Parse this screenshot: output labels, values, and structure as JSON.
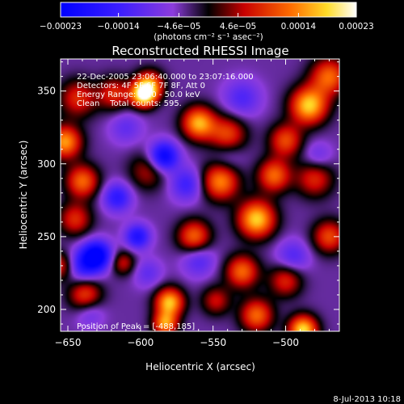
{
  "chart_data": {
    "type": "heatmap",
    "title": "Reconstructed RHESSI Image",
    "xlabel": "Heliocentric X (arcsec)",
    "ylabel": "Heliocentric Y (arcsec)",
    "xlim": [
      -655,
      -463
    ],
    "ylim": [
      185,
      372
    ],
    "x_ticks": [
      -650,
      -600,
      -550,
      -500
    ],
    "y_ticks": [
      200,
      250,
      300,
      350
    ],
    "x_tick_labels": [
      "−650",
      "−600",
      "−550",
      "−500"
    ],
    "y_tick_labels": [
      "200",
      "250",
      "300",
      "350"
    ],
    "colorbar": {
      "min": -0.00023,
      "max": 0.00023,
      "ticks": [
        -0.00023,
        -0.00014,
        -4.6e-05,
        4.6e-05,
        0.00014,
        0.00023
      ],
      "tick_labels": [
        "−0.00023",
        "−0.00014",
        "−4.6e−05",
        "4.6e−05",
        "0.00014",
        "0.00023"
      ],
      "unit_label": "(photons cm⁻² s⁻¹ asec⁻²)"
    },
    "annotations": [
      "22-Dec-2005 23:06:40.000 to 23:07:16.000",
      "Detectors: 4F 5F 6F 7F 8F, Att 0",
      "Energy Range: 25.0 - 50.0 keV",
      "Clean    Total counts: 595."
    ],
    "peak_label": "Position of Peak = [-488,185]",
    "peak": [
      -488,
      185
    ],
    "blobs": [
      {
        "x": -598,
        "y": 347,
        "v": 0.00022,
        "s": 6
      },
      {
        "x": -594,
        "y": 354,
        "v": 0.00018,
        "s": 7
      },
      {
        "x": -618,
        "y": 348,
        "v": 0.00012,
        "s": 8
      },
      {
        "x": -560,
        "y": 328,
        "v": 0.0002,
        "s": 8
      },
      {
        "x": -540,
        "y": 320,
        "v": 0.00014,
        "s": 9
      },
      {
        "x": -484,
        "y": 340,
        "v": 0.00022,
        "s": 9
      },
      {
        "x": -470,
        "y": 360,
        "v": 0.00016,
        "s": 9
      },
      {
        "x": -500,
        "y": 316,
        "v": 0.00014,
        "s": 8
      },
      {
        "x": -652,
        "y": 315,
        "v": 0.00019,
        "s": 8
      },
      {
        "x": -643,
        "y": 345,
        "v": 0.00012,
        "s": 9
      },
      {
        "x": -640,
        "y": 288,
        "v": 0.00016,
        "s": 8
      },
      {
        "x": -645,
        "y": 262,
        "v": 0.00012,
        "s": 8
      },
      {
        "x": -595,
        "y": 295,
        "v": 9e-05,
        "s": 9
      },
      {
        "x": -545,
        "y": 288,
        "v": 0.00018,
        "s": 9
      },
      {
        "x": -520,
        "y": 262,
        "v": 0.00022,
        "s": 9
      },
      {
        "x": -508,
        "y": 292,
        "v": 0.00016,
        "s": 8
      },
      {
        "x": -480,
        "y": 290,
        "v": 0.00012,
        "s": 9
      },
      {
        "x": -563,
        "y": 250,
        "v": 0.00016,
        "s": 8
      },
      {
        "x": -530,
        "y": 226,
        "v": 0.00016,
        "s": 8
      },
      {
        "x": -500,
        "y": 220,
        "v": 0.00012,
        "s": 8
      },
      {
        "x": -470,
        "y": 250,
        "v": 0.00014,
        "s": 8
      },
      {
        "x": -580,
        "y": 205,
        "v": 0.00021,
        "s": 7
      },
      {
        "x": -583,
        "y": 190,
        "v": 0.00018,
        "s": 6
      },
      {
        "x": -520,
        "y": 196,
        "v": 0.00016,
        "s": 8
      },
      {
        "x": -488,
        "y": 186,
        "v": 0.00023,
        "s": 7
      },
      {
        "x": -638,
        "y": 210,
        "v": 0.00014,
        "s": 8
      },
      {
        "x": -655,
        "y": 230,
        "v": 0.00012,
        "s": 7
      },
      {
        "x": -612,
        "y": 232,
        "v": 0.0001,
        "s": 6
      },
      {
        "x": -548,
        "y": 206,
        "v": 0.0001,
        "s": 7
      },
      {
        "x": -630,
        "y": 237,
        "v": -0.00021,
        "s": 7
      },
      {
        "x": -602,
        "y": 250,
        "v": -0.00014,
        "s": 6
      },
      {
        "x": -584,
        "y": 305,
        "v": -0.00019,
        "s": 7
      },
      {
        "x": -616,
        "y": 277,
        "v": -0.00012,
        "s": 7
      },
      {
        "x": -640,
        "y": 230,
        "v": -0.00012,
        "s": 8
      },
      {
        "x": -568,
        "y": 286,
        "v": -0.0001,
        "s": 8
      },
      {
        "x": -560,
        "y": 234,
        "v": -8e-05,
        "s": 8
      },
      {
        "x": -530,
        "y": 345,
        "v": -8e-05,
        "s": 9
      },
      {
        "x": -610,
        "y": 325,
        "v": -6e-05,
        "s": 8
      },
      {
        "x": -495,
        "y": 236,
        "v": -8e-05,
        "s": 8
      },
      {
        "x": -478,
        "y": 305,
        "v": -6e-05,
        "s": 7
      },
      {
        "x": -595,
        "y": 225,
        "v": -6e-05,
        "s": 7
      },
      {
        "x": -540,
        "y": 305,
        "v": -5e-05,
        "s": 8
      },
      {
        "x": -635,
        "y": 198,
        "v": -6e-05,
        "s": 7
      }
    ]
  },
  "footer": {
    "date_stamp": "8-Jul-2013 10:18"
  }
}
